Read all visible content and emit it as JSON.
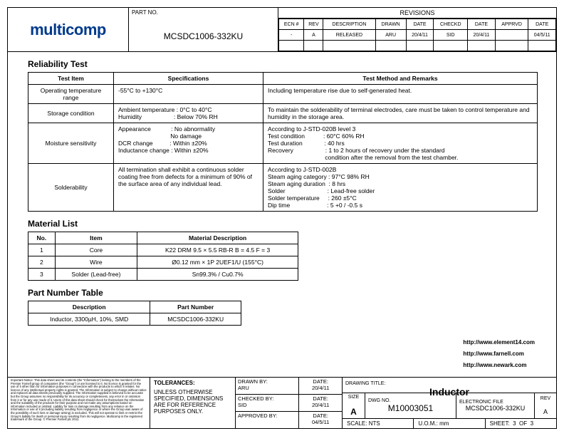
{
  "brand": {
    "name": "multicomp",
    "color": "#003a8c"
  },
  "header": {
    "partno_label": "PART NO.",
    "partno": "MCSDC1006-332KU",
    "revisions_title": "REVISIONS",
    "cols": [
      "ECN #",
      "REV",
      "DESCRIPTION",
      "DRAWN",
      "DATE",
      "CHECKD",
      "DATE",
      "APPRVD",
      "DATE"
    ],
    "rows": [
      [
        "-",
        "A",
        "RELEASED",
        "ARU",
        "20/4/11",
        "SID",
        "20/4/11",
        "",
        "04/5/11"
      ]
    ]
  },
  "reliability": {
    "title": "Reliability Test",
    "headers": [
      "Test Item",
      "Specifications",
      "Test Method and Remarks"
    ],
    "rows": [
      {
        "item": "Operating temperature range",
        "spec": "-55°C to +130°C",
        "rem": "Including temperature rise due to self-generated heat."
      },
      {
        "item": "Storage condition",
        "spec": "Ambient temperature : 0°C to 40°C\nHumidity                   : Below 70% RH",
        "rem": "To maintain the solderability of terminal electrodes, care must be taken to control temperature and humidity in the storage area."
      },
      {
        "item": "Moisture sensitivity",
        "spec": "Appearance            : No abnormality\n                               No damage\nDCR change          : Within ±20%\nInductance change : Within ±20%",
        "rem": "According to J-STD-020B level 3\nTest condition           : 60°C 60% RH\nTest duration             : 40 hrs\nRecovery                   : 1 to 2 hours of recovery under the standard\n                                  condition after the removal from the test chamber."
      },
      {
        "item": "Solderability",
        "spec": "All termination shall exhibit a continuous solder coating free from defects for a minimum of 90% of the surface area of any individual lead.",
        "rem": "According to J-STD-002B\nSteam aging category : 97°C 98% RH\nSteam aging duration  : 8 hrs\nSolder                         : Lead-free solder\nSolder temperature     : 260 ±5°C\nDip time                      : 5 +0 / -0.5 s"
      }
    ]
  },
  "material": {
    "title": "Material List",
    "headers": [
      "No.",
      "Item",
      "Material Description"
    ],
    "rows": [
      [
        "1",
        "Core",
        "K22 DRM 9.5 × 5.5 RB-R B = 4.5 F = 3"
      ],
      [
        "2",
        "Wire",
        "Ø0.12 mm × 1P 2UEF1/U (155°C)"
      ],
      [
        "3",
        "Solder (Lead-free)",
        "Sn99.3% / Cu0.7%"
      ]
    ]
  },
  "pnt": {
    "title": "Part Number Table",
    "headers": [
      "Description",
      "Part Number"
    ],
    "rows": [
      [
        "Inductor, 3300µH, 10%, SMD",
        "MCSDC1006-332KU"
      ]
    ]
  },
  "links": [
    "http://www.element14.com",
    "http://www.farnell.com",
    "http://www.newark.com"
  ],
  "footer": {
    "fineprint": "Important Notice: This data sheet and its contents (the \"Information\") belong to the members of the Premier Farnell group of companies (the \"Group\") or are licensed to it. No licence is granted for the use of it other than for Information purposes in connection with the products to which it relates. No licence of any intellectual property rights is granted. The Information is subject to change without notice and replaces all data sheets previously supplied. The Information supplied is believed to be accurate but the Group assumes no responsibility for its accuracy or completeness, any error in or omission from it or for any use made of it. Users of this data sheet should check for themselves the Information and the suitability of the products for their purpose and not make any assumptions based on information included or omitted. Liability for loss or damage resulting from any reliance on the Information or use of it (including liability resulting from negligence or where the Group was aware of the possibility of such loss or damage arising) is excluded. This will not operate to limit or restrict the Group's liability for death or personal injury resulting from its negligence. Multicomp is the registered trademark of the Group. © Premier Farnell plc 2011.",
    "tol_title": "TOLERANCES:",
    "tol_body": "UNLESS OTHERWISE SPECIFIED, DIMENSIONS ARE FOR REFERENCE PURPOSES ONLY.",
    "drawn_l": "DRAWN BY:",
    "drawn_v": "ARU",
    "drawn_d": "20/4/11",
    "check_l": "CHECKED BY:",
    "check_v": "SID",
    "check_d": "20/4/11",
    "appr_l": "APPROVED BY:",
    "appr_v": "",
    "appr_d": "04/5/11",
    "date_l": "DATE:",
    "dwg_title_l": "DRAWING TITLE:",
    "dwg_title": "Inductor",
    "size_l": "SIZE",
    "size": "A",
    "dwgno_l": "DWG NO.",
    "dwgno": "M10003051",
    "ef_l": "ELECTRONIC FILE",
    "ef": "MCSDC1006-332KU",
    "rev_l": "REV",
    "rev": "A",
    "scale_l": "SCALE:",
    "scale": "NTS",
    "uom_l": "U.O.M.:",
    "uom": "mm",
    "sheet_l": "SHEET:",
    "sheet_a": "3",
    "sheet_of": "OF",
    "sheet_b": "3"
  }
}
